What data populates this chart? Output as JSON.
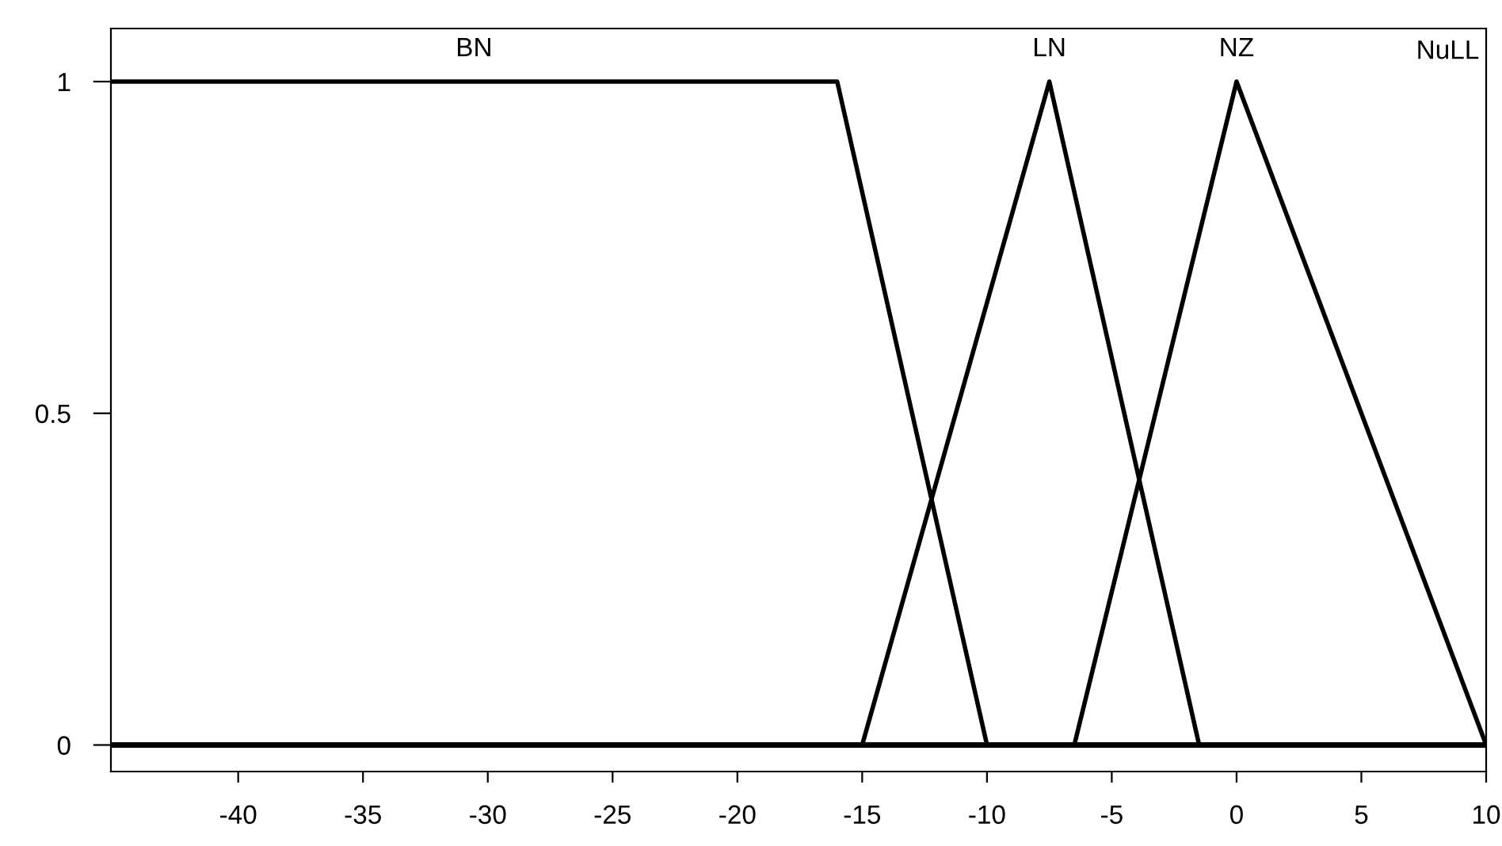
{
  "chart_data": {
    "type": "line",
    "series": [
      {
        "name": "BN",
        "color": "#000000",
        "x": [
          -45.1,
          -16,
          -10
        ],
        "values": [
          1,
          1,
          0
        ]
      },
      {
        "name": "LN",
        "color": "#000000",
        "x": [
          -15,
          -7.5,
          -1.5
        ],
        "values": [
          0,
          1,
          0
        ]
      },
      {
        "name": "NZ",
        "color": "#000000",
        "x": [
          -6.5,
          0,
          10
        ],
        "values": [
          0,
          1,
          0
        ]
      }
    ],
    "annotations": [
      "NuLL"
    ],
    "ref_lines": [
      {
        "axis": "y",
        "value": 0,
        "color": "#000000"
      }
    ],
    "xlim": [
      -45.1,
      10
    ],
    "xticks": [
      -40,
      -35,
      -30,
      -25,
      -20,
      -15,
      -10,
      -5,
      0,
      5,
      10
    ],
    "ylim": [
      -0.04,
      1.08
    ],
    "yticks": [
      0,
      0.5,
      1
    ],
    "grid": false,
    "legend": false,
    "marker": "none",
    "line_style": "solid"
  }
}
